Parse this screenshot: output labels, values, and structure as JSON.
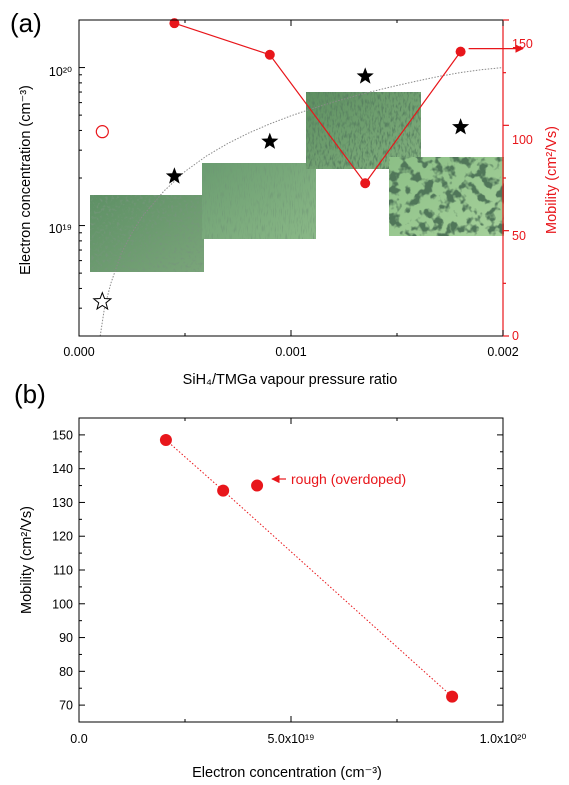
{
  "colors": {
    "red": "#e8161b",
    "black": "#000000",
    "fit_line": "#8a8a8a"
  },
  "chart_data": [
    {
      "panel_label": "(a)",
      "type": "scatter",
      "xlabel": "SiH₄/TMGa vapour pressure ratio",
      "ylabel": "Electron concentration (cm⁻³)",
      "y2label": "Mobility (cm²/Vs)",
      "xlim": [
        0,
        0.002
      ],
      "ylim": [
        2000000000000000000,
        200000000000000000000
      ],
      "yscale": "log",
      "y2lim": [
        0,
        150
      ],
      "x_ticks": [
        0.0,
        0.001,
        0.002
      ],
      "x_tick_labels": [
        "0.000",
        "0.001",
        "0.002"
      ],
      "y_ticks": [
        10000000000000000000,
        100000000000000000000
      ],
      "y_tick_labels": [
        "10¹⁹",
        "10²⁰"
      ],
      "y2_ticks": [
        0,
        50,
        100,
        150
      ],
      "y2_tick_labels": [
        "0",
        "50",
        "100",
        "150"
      ],
      "series": [
        {
          "marker": "star-filled",
          "color": "#000000",
          "axis": "left",
          "x": [
            0.00045,
            0.0009,
            0.00135,
            0.0018
          ],
          "y": [
            20500000000000000000,
            34000000000000000000,
            88000000000000000000,
            42000000000000000000
          ]
        },
        {
          "marker": "star-open",
          "color": "#000000",
          "axis": "left",
          "x": [
            0.00011
          ],
          "y": [
            3300000000000000000
          ]
        },
        {
          "marker": "circle-filled-line",
          "color": "#e8161b",
          "axis": "right",
          "x": [
            0.00045,
            0.0009,
            0.00135,
            0.0018
          ],
          "y": [
            148.5,
            133.5,
            72.5,
            135
          ]
        },
        {
          "marker": "circle-open",
          "color": "#e8161b",
          "axis": "right",
          "x": [
            0.00011
          ],
          "y": [
            97
          ]
        },
        {
          "marker": "fit-curve",
          "color": "#8a8a8a",
          "axis": "left",
          "style": "dotted",
          "x": [
            0.0001,
            0.00012,
            0.00015,
            0.0002,
            0.00025,
            0.0003,
            0.0004,
            0.0005,
            0.0006,
            0.0007,
            0.0008,
            0.0009,
            0.001,
            0.0011,
            0.0012,
            0.0013,
            0.0014,
            0.0015,
            0.0016,
            0.0017,
            0.0018,
            0.0019,
            0.002
          ],
          "y": [
            2000000000000000000,
            3000000000000000000,
            4300000000000000000,
            6700000000000000000,
            9000000000000000000,
            11500000000000000000,
            16500000000000000000,
            22000000000000000000,
            27500000000000000000,
            33000000000000000000,
            38500000000000000000,
            44000000000000000000,
            49500000000000000000,
            55000000000000000000,
            60500000000000000000,
            66000000000000000000,
            71500000000000000000,
            77000000000000000000,
            82500000000000000000,
            88000000000000000000,
            93000000000000000000,
            97000000000000000000,
            100000000000000000000
          ]
        }
      ],
      "annotations": [
        {
          "type": "arrow",
          "color": "#e8161b",
          "direction": "right",
          "points_to_axis": "right",
          "x": 0.0018,
          "y": 135
        }
      ],
      "inset_images": [
        {
          "name": "micrograph-1",
          "texture": "fine-dots"
        },
        {
          "name": "micrograph-2",
          "texture": "faint-streaks"
        },
        {
          "name": "micrograph-3",
          "texture": "dark-streaks"
        },
        {
          "name": "micrograph-4",
          "texture": "large-pits"
        }
      ]
    },
    {
      "panel_label": "(b)",
      "type": "scatter",
      "xlabel": "Electron concentration (cm⁻³)",
      "ylabel": "Mobility (cm²/Vs)",
      "xlim": [
        0,
        100000000000000000000
      ],
      "ylim": [
        65,
        155
      ],
      "x_ticks": [
        0,
        50000000000000000000,
        100000000000000000000
      ],
      "x_tick_labels": [
        "0.0",
        "5.0x10¹⁹",
        "1.0x10²⁰"
      ],
      "y_ticks": [
        70,
        80,
        90,
        100,
        110,
        120,
        130,
        140,
        150
      ],
      "y_tick_labels": [
        "70",
        "80",
        "90",
        "100",
        "110",
        "120",
        "130",
        "140",
        "150"
      ],
      "series": [
        {
          "marker": "circle-filled",
          "color": "#e8161b",
          "line": "dotted",
          "x": [
            20500000000000000000,
            34000000000000000000,
            88000000000000000000
          ],
          "y": [
            148.5,
            133.5,
            72.5
          ]
        },
        {
          "marker": "circle-filled",
          "color": "#e8161b",
          "x": [
            42000000000000000000
          ],
          "y": [
            135
          ]
        }
      ],
      "annotations": [
        {
          "type": "arrow-label",
          "text": "rough (overdoped)",
          "color": "#e8161b",
          "x": 42000000000000000000,
          "y": 135
        }
      ]
    }
  ]
}
